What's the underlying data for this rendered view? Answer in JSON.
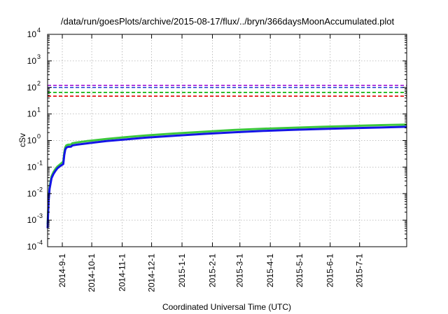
{
  "chart_data": {
    "type": "line",
    "title": "/data/run/goesPlots/archive/2015-08-17/flux/../bryn/366daysMoonAccumulated.plot",
    "xlabel": "Coordinated Universal Time (UTC)",
    "ylabel": "cSv",
    "yscale": "log",
    "ylim": [
      0.0001,
      10000
    ],
    "y_ticks": [
      {
        "base": "10",
        "exp": "-4",
        "value": 0.0001
      },
      {
        "base": "10",
        "exp": "-3",
        "value": 0.001
      },
      {
        "base": "10",
        "exp": "-2",
        "value": 0.01
      },
      {
        "base": "10",
        "exp": "-1",
        "value": 0.1
      },
      {
        "base": "10",
        "exp": "0",
        "value": 1
      },
      {
        "base": "10",
        "exp": "1",
        "value": 10
      },
      {
        "base": "10",
        "exp": "2",
        "value": 100
      },
      {
        "base": "10",
        "exp": "3",
        "value": 1000
      },
      {
        "base": "10",
        "exp": "4",
        "value": 10000
      }
    ],
    "x_unit": "days since 2014-08-17",
    "xlim": [
      0,
      366
    ],
    "x_ticks": [
      {
        "label": "2014-9-1",
        "value": 15
      },
      {
        "label": "2014-10-1",
        "value": 45
      },
      {
        "label": "2014-11-1",
        "value": 76
      },
      {
        "label": "2014-12-1",
        "value": 106
      },
      {
        "label": "2015-1-1",
        "value": 137
      },
      {
        "label": "2015-2-1",
        "value": 168
      },
      {
        "label": "2015-3-1",
        "value": 196
      },
      {
        "label": "2015-4-1",
        "value": 227
      },
      {
        "label": "2015-5-1",
        "value": 257
      },
      {
        "label": "2015-6-1",
        "value": 288
      },
      {
        "label": "2015-7-1",
        "value": 318
      }
    ],
    "grid": true,
    "reference_lines": [
      {
        "name": "limit-purple",
        "value": 120,
        "color": "#9400d3"
      },
      {
        "name": "limit-blue",
        "value": 100,
        "color": "#1f3fd0"
      },
      {
        "name": "limit-green",
        "value": 65,
        "color": "#00b000"
      },
      {
        "name": "limit-red",
        "value": 47,
        "color": "#e00000"
      }
    ],
    "series": [
      {
        "name": "accumulated-green",
        "color": "#3cc83c",
        "x": [
          0,
          1,
          2,
          4,
          6,
          8,
          10,
          13,
          16,
          17,
          18,
          19,
          20,
          21,
          24,
          25,
          26,
          30,
          40,
          60,
          80,
          100,
          130,
          160,
          190,
          220,
          250,
          280,
          310,
          340,
          366
        ],
        "y": [
          0.0007,
          0.006,
          0.018,
          0.045,
          0.065,
          0.085,
          0.105,
          0.13,
          0.16,
          0.35,
          0.55,
          0.65,
          0.68,
          0.7,
          0.71,
          0.78,
          0.8,
          0.85,
          0.95,
          1.15,
          1.35,
          1.55,
          1.85,
          2.15,
          2.5,
          2.8,
          3.05,
          3.3,
          3.55,
          3.8,
          4.0
        ]
      },
      {
        "name": "accumulated-blue",
        "color": "#1414e6",
        "x": [
          0,
          1,
          2,
          4,
          6,
          8,
          10,
          13,
          16,
          17,
          18,
          19,
          20,
          21,
          24,
          25,
          26,
          30,
          40,
          60,
          80,
          100,
          130,
          160,
          190,
          220,
          250,
          280,
          310,
          340,
          366
        ],
        "y": [
          0.0005,
          0.005,
          0.015,
          0.038,
          0.055,
          0.072,
          0.09,
          0.11,
          0.13,
          0.28,
          0.45,
          0.53,
          0.56,
          0.58,
          0.59,
          0.64,
          0.66,
          0.7,
          0.78,
          0.95,
          1.1,
          1.28,
          1.52,
          1.78,
          2.05,
          2.3,
          2.52,
          2.72,
          2.92,
          3.1,
          3.3
        ]
      }
    ]
  }
}
